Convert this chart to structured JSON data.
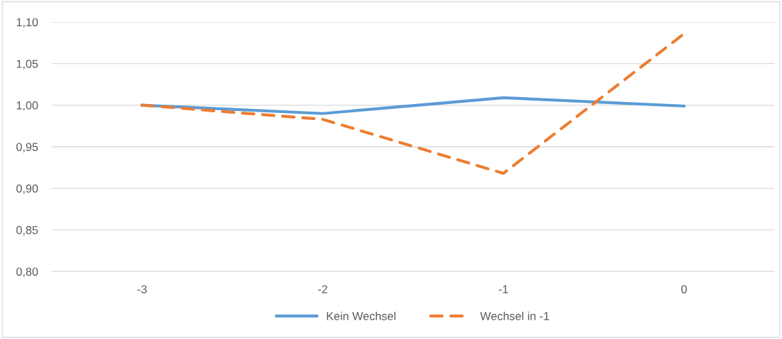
{
  "chart_data": {
    "type": "line",
    "categories": [
      "-3",
      "-2",
      "-1",
      "0"
    ],
    "series": [
      {
        "name": "Kein Wechsel",
        "color": "#5b9bd5",
        "line_style": "solid",
        "values": [
          1.0,
          0.99,
          1.009,
          0.999
        ]
      },
      {
        "name": "Wechsel in -1",
        "color": "#ed7d31",
        "line_style": "dashed",
        "values": [
          1.0,
          0.983,
          0.918,
          1.086
        ]
      }
    ],
    "ylim": [
      0.8,
      1.1
    ],
    "yticks": [
      {
        "value": 0.8,
        "label": "0,80"
      },
      {
        "value": 0.85,
        "label": "0,85"
      },
      {
        "value": 0.9,
        "label": "0,90"
      },
      {
        "value": 0.95,
        "label": "0,95"
      },
      {
        "value": 1.0,
        "label": "1,00"
      },
      {
        "value": 1.05,
        "label": "1,05"
      },
      {
        "value": 1.1,
        "label": "1,10"
      }
    ],
    "grid": "y",
    "legend": "bottom",
    "marker": "none"
  }
}
